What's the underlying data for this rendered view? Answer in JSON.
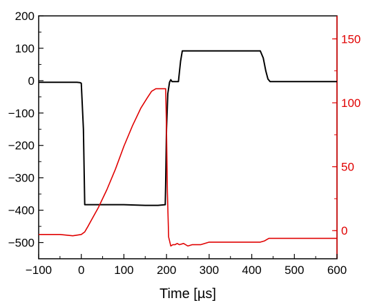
{
  "chart_data": {
    "type": "line",
    "xlabel": "Time [µs]",
    "xlim": [
      -100,
      600
    ],
    "x_ticks": [
      -100,
      0,
      100,
      200,
      300,
      400,
      500,
      600
    ],
    "y_left": {
      "label": "",
      "lim": [
        -550,
        200
      ],
      "ticks": [
        -500,
        -400,
        -300,
        -200,
        -100,
        0,
        100,
        200
      ],
      "color": "#000000"
    },
    "y_right": {
      "label": "",
      "lim": [
        -22,
        168
      ],
      "ticks": [
        0,
        50,
        100,
        150
      ],
      "color": "#e00000"
    },
    "grid": false,
    "series": [
      {
        "axis": "left",
        "color": "#000000",
        "x": [
          -100,
          -10,
          -3,
          0,
          5,
          8,
          100,
          150,
          180,
          197,
          198,
          200,
          203,
          207,
          210,
          213,
          222,
          228,
          229,
          233,
          237,
          420,
          427,
          433,
          438,
          443,
          600
        ],
        "y": [
          -5,
          -5,
          -6,
          -8,
          -150,
          -383,
          -383,
          -385,
          -385,
          -383,
          -320,
          -150,
          -40,
          -5,
          3,
          -3,
          -3,
          -3,
          10,
          60,
          92,
          92,
          70,
          30,
          5,
          -3,
          -3
        ]
      },
      {
        "axis": "right",
        "color": "#e00000",
        "x": [
          -100,
          -50,
          -20,
          0,
          8,
          15,
          25,
          40,
          60,
          80,
          100,
          120,
          140,
          155,
          165,
          175,
          190,
          195,
          198,
          200,
          202,
          205,
          210,
          215,
          220,
          225,
          230,
          240,
          250,
          260,
          280,
          300,
          320,
          350,
          380,
          420,
          430,
          440,
          600
        ],
        "y": [
          -3,
          -3,
          -4,
          -3,
          -1,
          3,
          9,
          18,
          32,
          48,
          66,
          82,
          96,
          104,
          109,
          111,
          111,
          111,
          111,
          80,
          30,
          -5,
          -12,
          -11,
          -11,
          -10,
          -11,
          -10,
          -12,
          -11,
          -11,
          -9,
          -9,
          -9,
          -9,
          -9,
          -8,
          -6,
          -6
        ]
      }
    ]
  }
}
